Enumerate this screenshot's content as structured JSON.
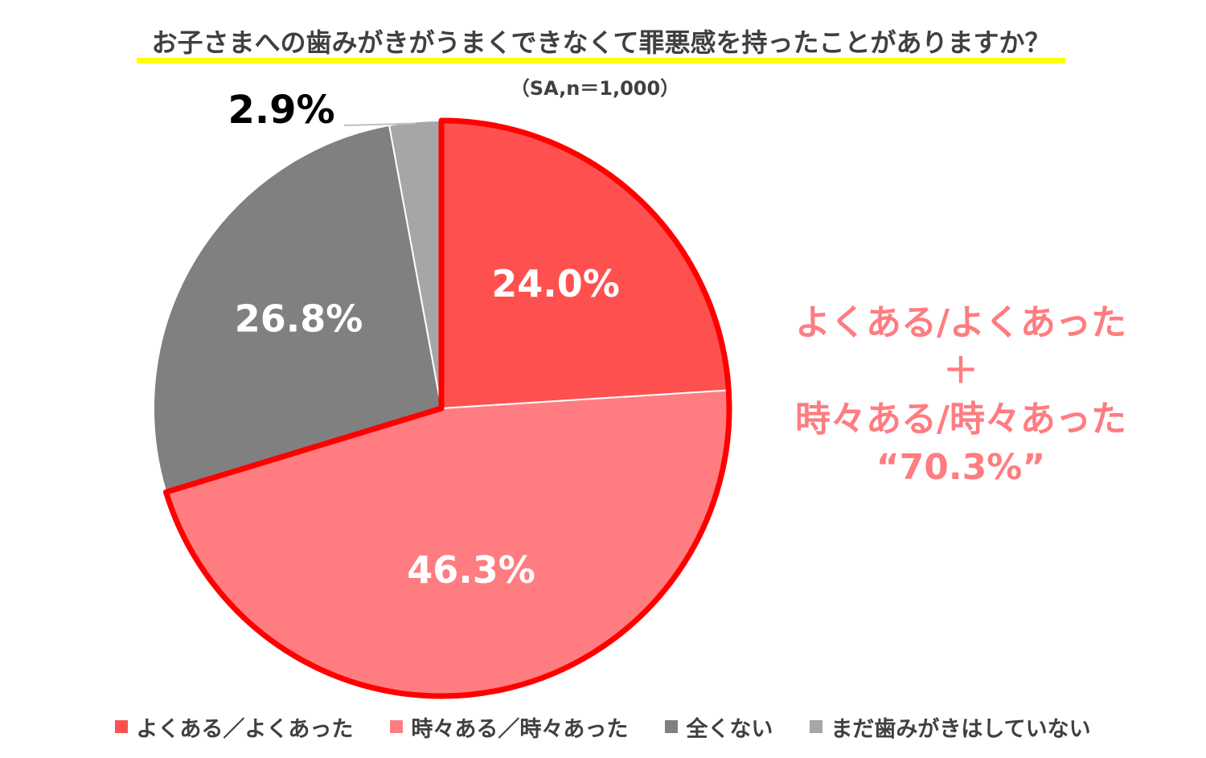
{
  "chart_data": {
    "type": "pie",
    "title": "お子さまへの歯みがきがうまくできなくて罪悪感を持ったことがありますか？",
    "subtitle": "（SA,n＝1,000）",
    "slices": [
      {
        "label": "よくある／よくあった",
        "value": 24.0,
        "display": "24.0%",
        "color": "#ff5050"
      },
      {
        "label": "時々ある／時々あった",
        "value": 46.3,
        "display": "46.3%",
        "color": "#ff7c80"
      },
      {
        "label": "全くない",
        "value": 26.8,
        "display": "26.8%",
        "color": "#808080"
      },
      {
        "label": "まだ歯みがきはしていない",
        "value": 2.9,
        "display": "2.9%",
        "color": "#a6a6a6"
      }
    ],
    "highlight_color": "#ff0000",
    "annotation": {
      "lines": [
        "よくある/よくあった",
        "＋",
        "時々ある/時々あった",
        "“70.3%”"
      ],
      "color": "#ff7c80"
    },
    "legend_position": "bottom"
  }
}
